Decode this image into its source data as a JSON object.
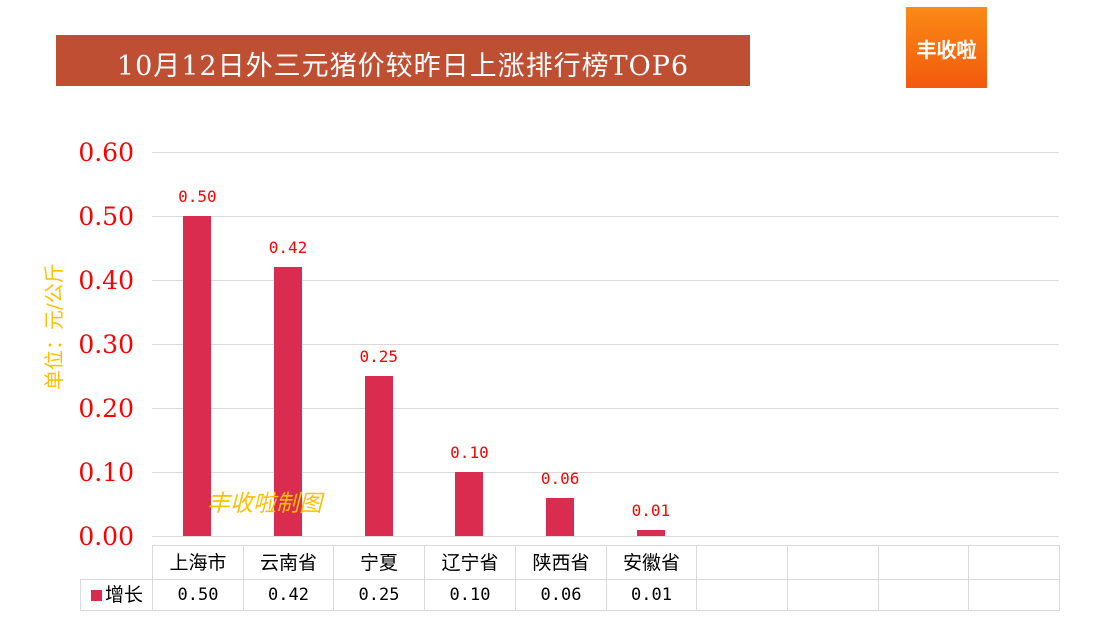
{
  "header": {
    "title": "10月12日外三元猪价较昨日上涨排行榜TOP6",
    "banner_color": "#bf4f32",
    "logo_text": "丰收啦"
  },
  "watermark": "丰收啦制图",
  "chart_data": {
    "type": "bar",
    "title": "10月12日外三元猪价较昨日上涨排行榜TOP6",
    "xlabel": "",
    "ylabel": "单位：元/公斤",
    "ylim": [
      0,
      0.6
    ],
    "y_ticks": [
      "0.60",
      "0.50",
      "0.40",
      "0.30",
      "0.20",
      "0.10",
      "0.00"
    ],
    "grid": true,
    "legend_position": "data-table",
    "categories": [
      "上海市",
      "云南省",
      "宁夏",
      "辽宁省",
      "陕西省",
      "安徽省"
    ],
    "series": [
      {
        "name": "增长",
        "color": "#da2c4f",
        "values": [
          0.5,
          0.42,
          0.25,
          0.1,
          0.06,
          0.01
        ]
      }
    ],
    "data_labels": [
      "0.50",
      "0.42",
      "0.25",
      "0.10",
      "0.06",
      "0.01"
    ]
  },
  "table": {
    "legend_label": "增长",
    "headers": [
      "上海市",
      "云南省",
      "宁夏",
      "辽宁省",
      "陕西省",
      "安徽省",
      "",
      "",
      "",
      ""
    ],
    "values": [
      "0.50",
      "0.42",
      "0.25",
      "0.10",
      "0.06",
      "0.01",
      "",
      "",
      "",
      ""
    ]
  }
}
